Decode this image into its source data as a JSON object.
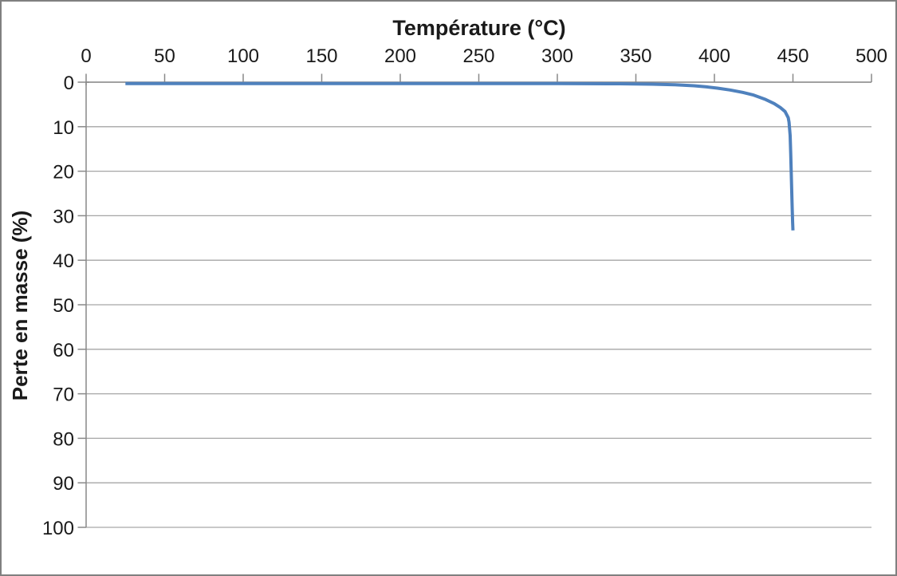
{
  "frame": {
    "background": "#ffffff",
    "border_color": "#808080"
  },
  "chart_data": {
    "type": "line",
    "title": "Température (°C)",
    "xlabel": "Température (°C)",
    "ylabel": "Perte en masse (%)",
    "x_axis": {
      "position": "top",
      "min": 0,
      "max": 500,
      "tick_step": 50,
      "tick_labels": [
        "0",
        "50",
        "100",
        "150",
        "200",
        "250",
        "300",
        "350",
        "400",
        "450",
        "500"
      ]
    },
    "y_axis": {
      "position": "left",
      "min": 0,
      "max": 100,
      "tick_step": 10,
      "inverted": true,
      "tick_labels": [
        "0",
        "10",
        "20",
        "30",
        "40",
        "50",
        "60",
        "70",
        "80",
        "90",
        "100"
      ]
    },
    "grid": {
      "horizontal": true,
      "vertical": false,
      "color": "#a6a6a6"
    },
    "axis_color": "#898989",
    "legend": "none",
    "series": [
      {
        "name": "perte-en-masse",
        "color": "#4F81BD",
        "stroke_width": 4,
        "points": [
          [
            25,
            0.3
          ],
          [
            50,
            0.3
          ],
          [
            100,
            0.3
          ],
          [
            150,
            0.3
          ],
          [
            200,
            0.3
          ],
          [
            250,
            0.3
          ],
          [
            300,
            0.3
          ],
          [
            340,
            0.35
          ],
          [
            360,
            0.45
          ],
          [
            375,
            0.6
          ],
          [
            387,
            0.8
          ],
          [
            395,
            1.05
          ],
          [
            402,
            1.35
          ],
          [
            410,
            1.75
          ],
          [
            418,
            2.3
          ],
          [
            425,
            2.9
          ],
          [
            432,
            3.8
          ],
          [
            438,
            4.8
          ],
          [
            442,
            5.7
          ],
          [
            445,
            6.6
          ],
          [
            447,
            8
          ],
          [
            447.5,
            9
          ],
          [
            448.2,
            12
          ],
          [
            448.6,
            16
          ],
          [
            448.9,
            20
          ],
          [
            449.2,
            24
          ],
          [
            449.5,
            28
          ],
          [
            449.8,
            31.5
          ],
          [
            450,
            33.3
          ]
        ]
      }
    ]
  }
}
